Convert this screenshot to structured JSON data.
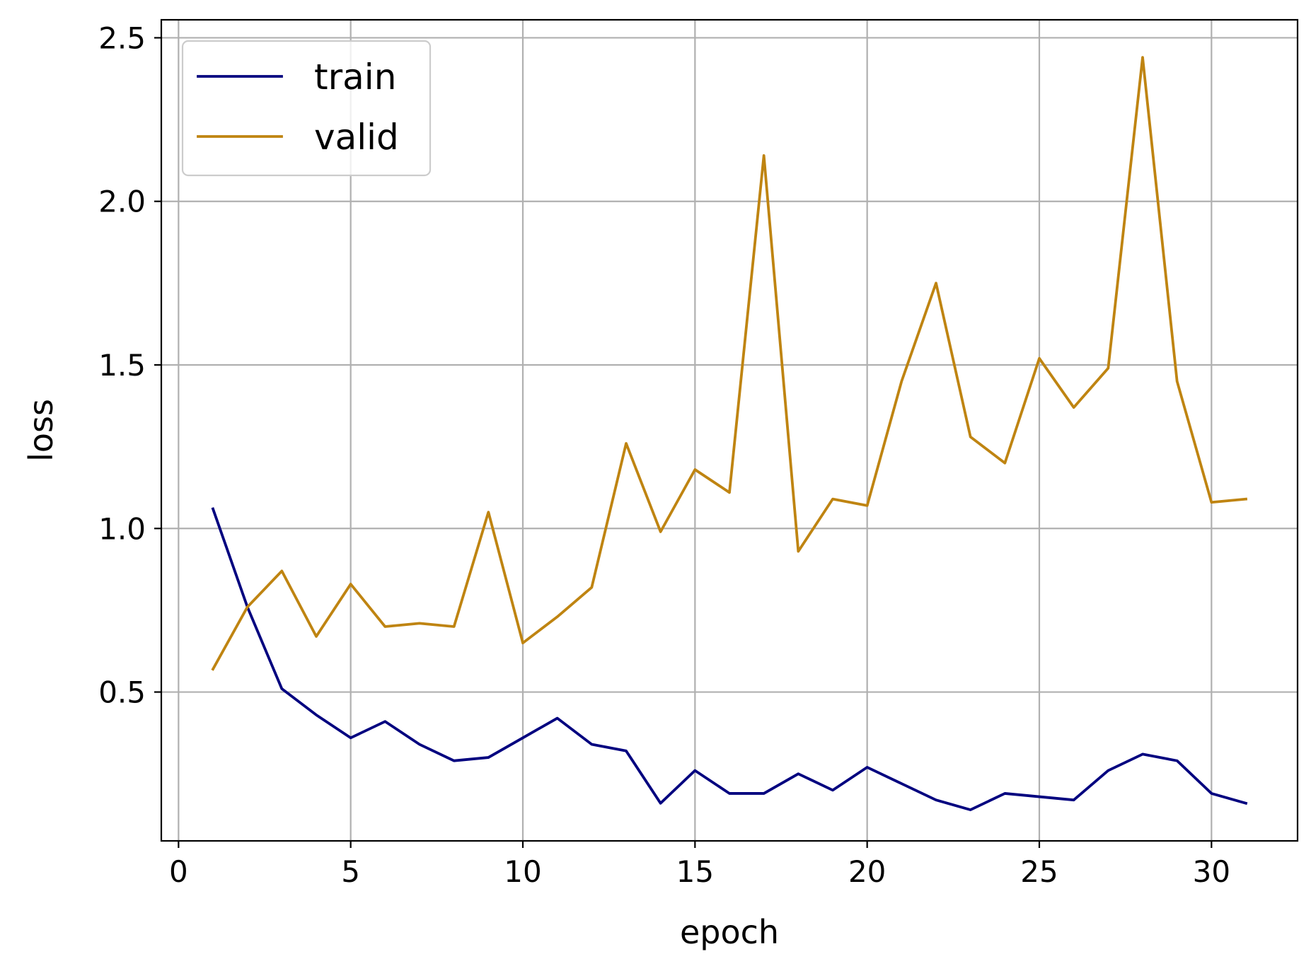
{
  "chart_data": {
    "type": "line",
    "title": "",
    "xlabel": "epoch",
    "ylabel": "loss",
    "xlim": [
      -0.5,
      32.5
    ],
    "ylim": [
      0.045,
      2.555
    ],
    "xticks": [
      "0",
      "5",
      "10",
      "15",
      "20",
      "25",
      "30"
    ],
    "yticks": [
      "0.5",
      "1.0",
      "1.5",
      "2.0",
      "2.5"
    ],
    "grid": true,
    "legend_position": "top-left",
    "x": [
      1,
      2,
      3,
      4,
      5,
      6,
      7,
      8,
      9,
      10,
      11,
      12,
      13,
      14,
      15,
      16,
      17,
      18,
      19,
      20,
      21,
      22,
      23,
      24,
      25,
      26,
      27,
      28,
      29,
      30,
      31
    ],
    "series": [
      {
        "name": "train",
        "color": "#00007f",
        "values": [
          1.06,
          0.76,
          0.51,
          0.43,
          0.36,
          0.41,
          0.34,
          0.29,
          0.3,
          0.36,
          0.42,
          0.34,
          0.32,
          0.16,
          0.26,
          0.19,
          0.19,
          0.25,
          0.2,
          0.27,
          0.22,
          0.17,
          0.14,
          0.19,
          0.18,
          0.17,
          0.26,
          0.31,
          0.29,
          0.19,
          0.16
        ]
      },
      {
        "name": "valid",
        "color": "#bf8411",
        "values": [
          0.57,
          0.76,
          0.87,
          0.67,
          0.83,
          0.7,
          0.71,
          0.7,
          1.05,
          0.65,
          0.73,
          0.82,
          1.26,
          0.99,
          1.18,
          1.11,
          2.14,
          0.93,
          1.09,
          1.07,
          1.45,
          1.75,
          1.28,
          1.2,
          1.52,
          1.37,
          1.49,
          2.44,
          1.45,
          1.08,
          1.09
        ]
      }
    ]
  }
}
